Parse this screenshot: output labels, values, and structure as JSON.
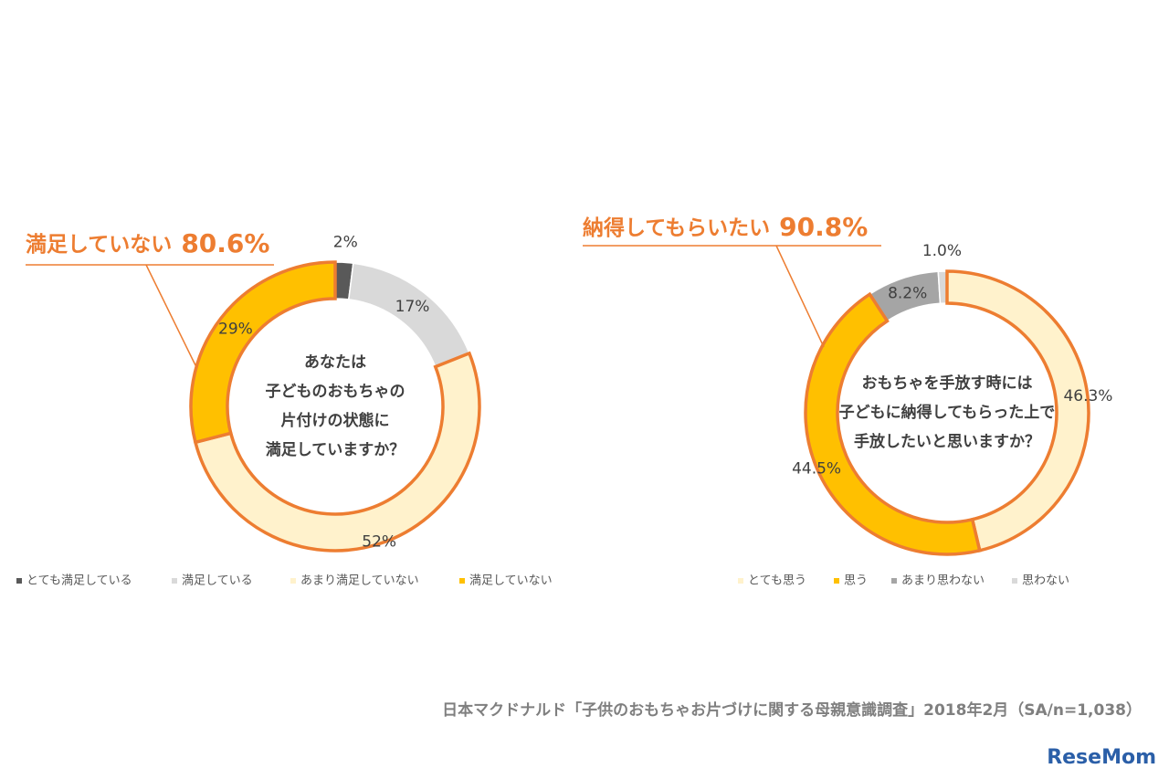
{
  "chart_data": [
    {
      "type": "donut",
      "callout_label": "満足していない",
      "callout_value": "80.6%",
      "center_text": [
        "あなたは",
        "子どものおもちゃの",
        "片付けの状態に",
        "満足していますか？"
      ],
      "categories": [
        "とても満足している",
        "満足している",
        "あまり満足していない",
        "満足していない"
      ],
      "values": [
        2,
        17,
        52,
        29
      ],
      "value_labels": [
        "2%",
        "17%",
        "52%",
        "29%"
      ],
      "colors": [
        "#595959",
        "#d9d9d9",
        "#fff2cc",
        "#ffc000"
      ],
      "outlined": [
        false,
        false,
        true,
        true
      ]
    },
    {
      "type": "donut",
      "callout_label": "納得してもらいたい",
      "callout_value": "90.8%",
      "center_text": [
        "おもちゃを手放す時には",
        "子どもに納得してもらった上で",
        "手放したいと思いますか？"
      ],
      "categories": [
        "とても思う",
        "思う",
        "あまり思わない",
        "思わない"
      ],
      "values": [
        46.3,
        44.5,
        8.2,
        1.0
      ],
      "value_labels": [
        "46.3%",
        "44.5%",
        "8.2%",
        "1.0%"
      ],
      "colors": [
        "#fff2cc",
        "#ffc000",
        "#a5a5a5",
        "#d9d9d9"
      ],
      "outlined": [
        true,
        true,
        false,
        false
      ]
    }
  ],
  "source": "日本マクドナルド「子供のおもちゃお片づけに関する母親意識調査」2018年2月（SA/n=1,038）",
  "logo": "ReseMom"
}
